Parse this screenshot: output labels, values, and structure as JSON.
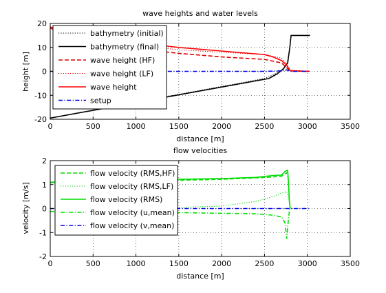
{
  "chart_data": [
    {
      "type": "line",
      "title": "wave heights and water levels",
      "xlabel": "distance [m]",
      "ylabel": "height [m]",
      "xlim": [
        0,
        3500
      ],
      "ylim": [
        -20,
        20
      ],
      "xticks": [
        0,
        500,
        1000,
        1500,
        2000,
        2500,
        3000,
        3500
      ],
      "yticks": [
        -20,
        -10,
        0,
        10,
        20
      ],
      "grid": true,
      "legend_position": "top-left",
      "series": [
        {
          "name": "bathymetry (initial)",
          "color": "#000000",
          "style": "dotted",
          "x": [
            0,
            2500,
            2600,
            2700,
            2760,
            2790,
            2810,
            3030
          ],
          "y": [
            -19.5,
            -3.0,
            -1.5,
            0.5,
            3.0,
            8.0,
            15.0,
            15.0
          ]
        },
        {
          "name": "bathymetry (final)",
          "color": "#000000",
          "style": "solid",
          "x": [
            0,
            2550,
            2650,
            2720,
            2770,
            2795,
            2810,
            3030
          ],
          "y": [
            -19.5,
            -3.0,
            -1.0,
            1.0,
            3.5,
            10.0,
            15.0,
            15.0
          ]
        },
        {
          "name": "wave height (HF)",
          "color": "#e00000",
          "style": "dashed",
          "x": [
            0,
            500,
            1000,
            1500,
            2000,
            2500,
            2700,
            2760,
            2800,
            3030
          ],
          "y": [
            18.0,
            12.5,
            9.5,
            7.5,
            6.0,
            5.0,
            3.5,
            1.5,
            0.2,
            0
          ]
        },
        {
          "name": "wave height (LF)",
          "color": "#e00000",
          "style": "dotted",
          "x": [
            0,
            500,
            1000,
            1500,
            2000,
            2500,
            2700,
            2760,
            2800,
            3030
          ],
          "y": [
            18.0,
            13.5,
            11.0,
            9.0,
            8.0,
            7.0,
            5.5,
            3.0,
            0.5,
            0
          ]
        },
        {
          "name": "wave height",
          "color": "#ff0000",
          "style": "solid",
          "x": [
            0,
            500,
            1000,
            1500,
            2000,
            2500,
            2600,
            2700,
            2760,
            2800,
            3030
          ],
          "y": [
            18.5,
            14.5,
            12.0,
            10.0,
            8.5,
            7.0,
            6.0,
            4.5,
            2.5,
            0.3,
            0
          ]
        },
        {
          "name": "setup",
          "color": "#0000e6",
          "style": "dashdot",
          "x": [
            0,
            2500,
            2700,
            2760,
            2800,
            3030
          ],
          "y": [
            0,
            0,
            0.2,
            0.6,
            0,
            0
          ]
        }
      ]
    },
    {
      "type": "line",
      "title": "flow velocities",
      "xlabel": "distance [m]",
      "ylabel": "velocity [m/s]",
      "xlim": [
        0,
        3500
      ],
      "ylim": [
        -2,
        2
      ],
      "xticks": [
        0,
        500,
        1000,
        1500,
        2000,
        2500,
        3000,
        3500
      ],
      "yticks": [
        -2,
        -1,
        0,
        1,
        2
      ],
      "grid": true,
      "legend_position": "top-left",
      "series": [
        {
          "name": "flow velocity (RMS,HF)",
          "color": "#00dd00",
          "style": "dashed",
          "x": [
            0,
            500,
            1000,
            1500,
            2000,
            2400,
            2600,
            2700,
            2740,
            2770,
            2780,
            2790,
            2800
          ],
          "y": [
            1.08,
            1.12,
            1.15,
            1.18,
            1.22,
            1.28,
            1.32,
            1.35,
            1.45,
            1.5,
            1.0,
            0.3,
            0
          ]
        },
        {
          "name": "flow velocity (RMS,LF)",
          "color": "#00dd00",
          "style": "dotted",
          "x": [
            0,
            500,
            1000,
            1500,
            2000,
            2400,
            2600,
            2700,
            2760,
            2790,
            2800
          ],
          "y": [
            0,
            0,
            0.02,
            0.05,
            0.1,
            0.3,
            0.5,
            0.65,
            0.7,
            0.3,
            0
          ]
        },
        {
          "name": "flow velocity (RMS)",
          "color": "#00dd00",
          "style": "solid",
          "x": [
            0,
            500,
            1000,
            1500,
            2000,
            2400,
            2600,
            2700,
            2740,
            2770,
            2780,
            2790,
            2800
          ],
          "y": [
            1.1,
            1.15,
            1.18,
            1.22,
            1.25,
            1.3,
            1.38,
            1.4,
            1.55,
            1.6,
            1.1,
            0.3,
            0
          ]
        },
        {
          "name": "flow velocity (u,mean)",
          "color": "#00dd00",
          "style": "dashdot",
          "x": [
            0,
            500,
            1000,
            1500,
            2000,
            2400,
            2600,
            2700,
            2740,
            2760,
            2775,
            2790,
            2800
          ],
          "y": [
            -0.12,
            -0.13,
            -0.15,
            -0.17,
            -0.2,
            -0.22,
            -0.28,
            -0.35,
            -0.6,
            -1.25,
            -0.6,
            -0.1,
            0
          ]
        },
        {
          "name": "flow velocity (v,mean)",
          "color": "#0000e6",
          "style": "dashdot",
          "x": [
            0,
            3030
          ],
          "y": [
            0,
            0
          ]
        }
      ]
    }
  ]
}
